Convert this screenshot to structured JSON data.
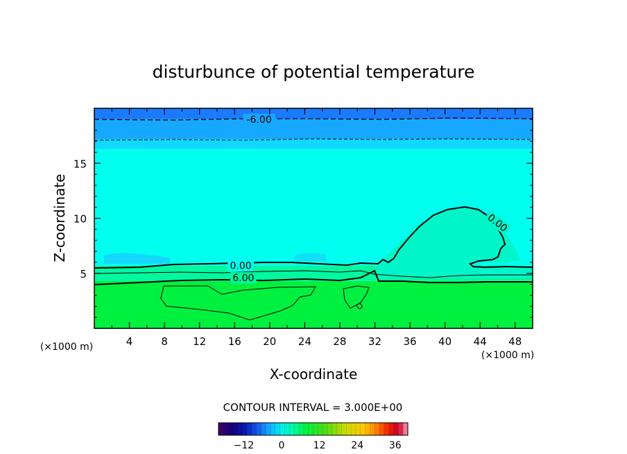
{
  "chart_data": {
    "type": "heatmap",
    "title": "disturbunce of potential temperature",
    "xlabel": "X-coordinate",
    "ylabel": "Z-coordinate",
    "x_unit_left": "(×1000 m)",
    "x_unit_right": "(×1000 m)",
    "xlim": [
      0,
      50
    ],
    "ylim": [
      0,
      20
    ],
    "x_ticks": [
      {
        "value": 4,
        "label": "4"
      },
      {
        "value": 8,
        "label": "8"
      },
      {
        "value": 12,
        "label": "12"
      },
      {
        "value": 16,
        "label": "16"
      },
      {
        "value": 20,
        "label": "20"
      },
      {
        "value": 24,
        "label": "24"
      },
      {
        "value": 28,
        "label": "28"
      },
      {
        "value": 32,
        "label": "32"
      },
      {
        "value": 36,
        "label": "36"
      },
      {
        "value": 40,
        "label": "40"
      },
      {
        "value": 44,
        "label": "44"
      },
      {
        "value": 48,
        "label": "48"
      }
    ],
    "y_ticks": [
      {
        "value": 5,
        "label": "5"
      },
      {
        "value": 10,
        "label": "10"
      },
      {
        "value": 15,
        "label": "15"
      }
    ],
    "contour_interval_text": "CONTOUR INTERVAL = 3.000E+00",
    "contour_labels": [
      {
        "text": "-6.00",
        "x": 18.8,
        "z": 19.0
      },
      {
        "text": "0.00",
        "x": 16.7,
        "z": 5.7
      },
      {
        "text": "6.00",
        "x": 17.0,
        "z": 4.6
      },
      {
        "text": "0.00",
        "x": 46.0,
        "z": 9.6
      }
    ],
    "colorbar": {
      "min": -20,
      "max": 40,
      "ticks": [
        {
          "value": -12,
          "label": "−12"
        },
        {
          "value": 0,
          "label": "0"
        },
        {
          "value": 12,
          "label": "12"
        },
        {
          "value": 24,
          "label": "24"
        },
        {
          "value": 36,
          "label": "36"
        }
      ]
    },
    "field_bands": [
      {
        "z_from": 19.0,
        "z_to": 20.0,
        "value": -9,
        "color": "#1a7bff"
      },
      {
        "z_from": 17.2,
        "z_to": 19.0,
        "value": -6,
        "color": "#16a8ff"
      },
      {
        "z_from": 16.3,
        "z_to": 17.2,
        "value": -3,
        "color": "#10d8ff"
      },
      {
        "z_from": 5.7,
        "z_to": 16.3,
        "value": 0,
        "color": "#00ffee"
      },
      {
        "z_from": 4.3,
        "z_to": 5.7,
        "value": 3,
        "color": "#00f8a0"
      },
      {
        "z_from": 0.0,
        "z_to": 4.3,
        "value": 6,
        "color": "#00f040"
      }
    ]
  }
}
